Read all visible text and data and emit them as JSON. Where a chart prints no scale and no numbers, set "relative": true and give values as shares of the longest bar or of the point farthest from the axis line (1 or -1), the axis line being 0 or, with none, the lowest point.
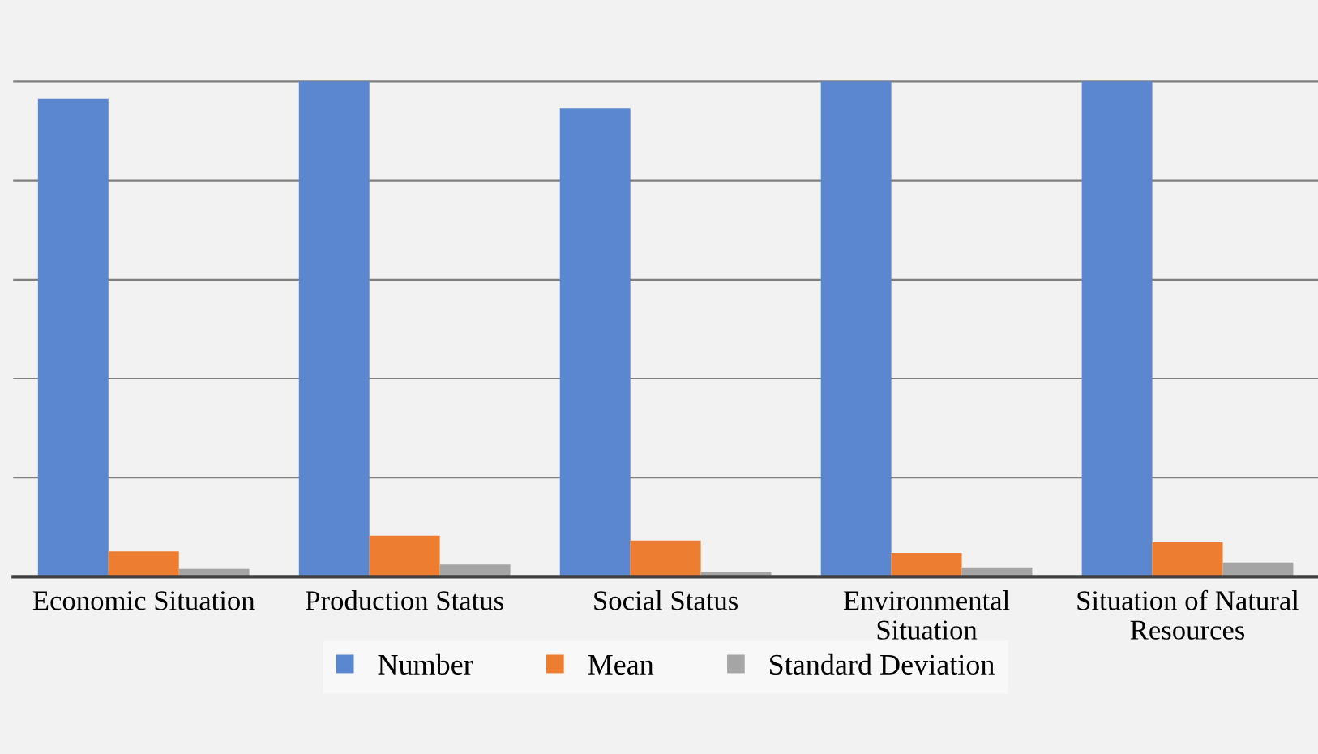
{
  "chart_data": {
    "type": "bar",
    "relative": true,
    "grid": "y",
    "legend": "bottom",
    "categories": [
      "Economic Situation",
      "Production Status",
      "Social Status",
      "Environmental\nSituation",
      "Situation of Natural\nResources"
    ],
    "series": [
      {
        "name": "Number",
        "color": "#5b86d0",
        "values": [
          0.965,
          1,
          0.946,
          1,
          1
        ]
      },
      {
        "name": "Mean",
        "color": "#ed7d31",
        "values": [
          0.051,
          0.083,
          0.073,
          0.048,
          0.07
        ]
      },
      {
        "name": "Standard Deviation",
        "color": "#a5a5a5",
        "values": [
          0.016,
          0.025,
          0.01,
          0.019,
          0.029
        ]
      }
    ]
  }
}
